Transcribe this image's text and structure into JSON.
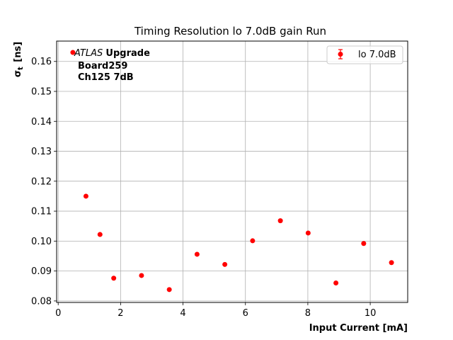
{
  "chart_data": {
    "type": "scatter",
    "title": "Timing Resolution lo 7.0dB gain Run",
    "xlabel": "Input Current [mA]",
    "ylabel_main": "σ",
    "ylabel_sub": "t",
    "ylabel_unit": "[ns]",
    "xlim": [
      -0.05,
      11.2
    ],
    "ylim": [
      0.0795,
      0.1668
    ],
    "xticks": [
      0,
      2,
      4,
      6,
      8,
      10
    ],
    "xtick_labels": [
      "0",
      "2",
      "4",
      "6",
      "8",
      "10"
    ],
    "yticks": [
      0.08,
      0.09,
      0.1,
      0.11,
      0.12,
      0.13,
      0.14,
      0.15,
      0.16
    ],
    "ytick_labels": [
      "0.08",
      "0.09",
      "0.10",
      "0.11",
      "0.12",
      "0.13",
      "0.14",
      "0.15",
      "0.16"
    ],
    "grid": true,
    "legend_position": "top-right",
    "series": [
      {
        "name": "lo 7.0dB",
        "color": "#ff0000",
        "marker": "circle",
        "x": [
          0.89,
          1.34,
          1.78,
          2.67,
          3.56,
          4.45,
          5.34,
          6.23,
          7.12,
          8.01,
          8.9,
          9.79,
          10.68
        ],
        "y": [
          0.115,
          0.1022,
          0.0876,
          0.0885,
          0.0838,
          0.0956,
          0.0922,
          0.1001,
          0.1068,
          0.1027,
          0.086,
          0.0992,
          0.0928
        ]
      }
    ],
    "annotations": {
      "atlas_italic": "ATLAS",
      "atlas_bold": "Upgrade",
      "line2": "Board259",
      "line3": "Ch125 7dB",
      "marker_x": 0.47,
      "marker_y": 0.163
    }
  }
}
